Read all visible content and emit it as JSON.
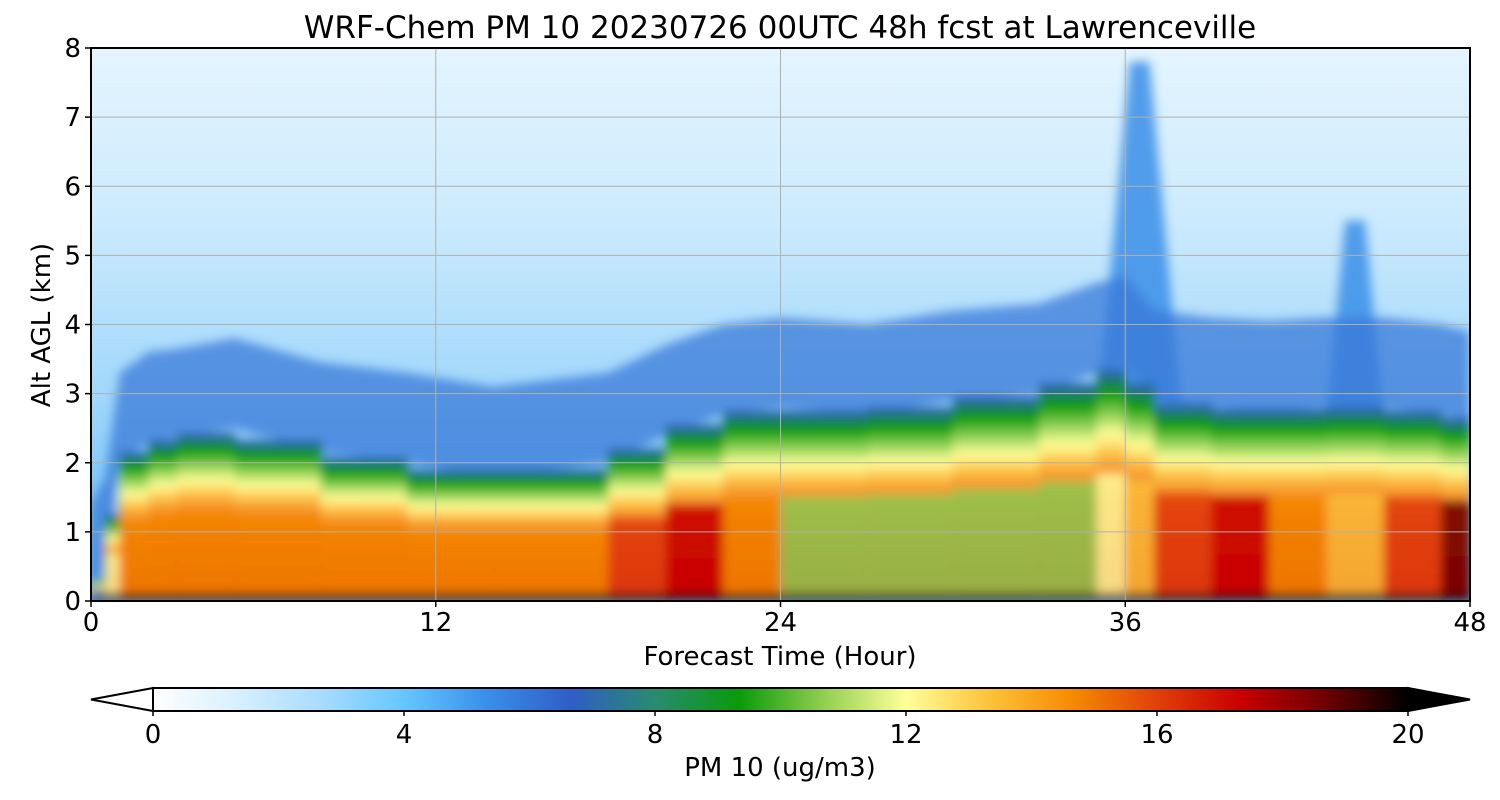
{
  "chart_data": {
    "type": "heatmap",
    "title": "WRF-Chem PM 10  20230726 00UTC 48h fcst at Lawrenceville",
    "xlabel": "Forecast Time (Hour)",
    "ylabel": "Alt AGL (km)",
    "xlim": [
      0,
      48
    ],
    "ylim": [
      0,
      8
    ],
    "x_ticks": [
      "0",
      "12",
      "24",
      "36",
      "48"
    ],
    "y_ticks": [
      "0",
      "1",
      "2",
      "3",
      "4",
      "5",
      "6",
      "7",
      "8"
    ],
    "grid": true,
    "colorbar": {
      "label": "PM 10  (ug/m3)",
      "vmin": 0,
      "vmax": 20,
      "ticks": [
        "0",
        "4",
        "8",
        "12",
        "16",
        "20"
      ],
      "extend": "both",
      "colors": [
        "#ffffff",
        "#d8f0ff",
        "#a8dcff",
        "#66c6ff",
        "#3a8ee8",
        "#2f5ec4",
        "#2a8a70",
        "#0a9a0a",
        "#8fce50",
        "#ffff9a",
        "#fcc23a",
        "#f58a00",
        "#e0400a",
        "#c80000",
        "#700000",
        "#000000"
      ]
    },
    "layers": {
      "hours": [
        0,
        0.5,
        1,
        2,
        3,
        5,
        8,
        11,
        14,
        18,
        20,
        22,
        24,
        27,
        30,
        33,
        35,
        36,
        37,
        39,
        41,
        43,
        45,
        47,
        48
      ],
      "surface_max_pm10": [
        1,
        8,
        15,
        15,
        15,
        15,
        15,
        15,
        15,
        15,
        16,
        18,
        11,
        11,
        11,
        11,
        11,
        12,
        15,
        18,
        16,
        14,
        13,
        18,
        20
      ],
      "aerosol_top_km": [
        0.1,
        0.5,
        2.0,
        2.3,
        2.35,
        2.5,
        2.15,
        2.0,
        1.8,
        2.0,
        2.4,
        2.7,
        2.8,
        2.7,
        2.9,
        3.0,
        3.3,
        3.4,
        2.9,
        2.8,
        2.75,
        2.8,
        2.8,
        2.7,
        2.6
      ],
      "elevated_plume": [
        {
          "hours": [
            35,
            38
          ],
          "top_km": 7.8,
          "pm10": 5
        },
        {
          "hours": [
            43,
            45
          ],
          "top_km": 5.5,
          "pm10": 5
        }
      ]
    }
  }
}
